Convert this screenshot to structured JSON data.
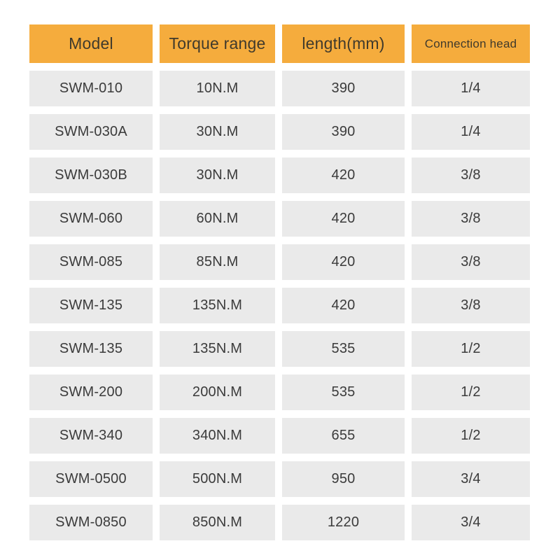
{
  "colors": {
    "header_bg": "#f5ac3d",
    "header_text": "#403a2c",
    "cell_bg": "#eaeaea",
    "cell_text": "#3b3b3b",
    "page_bg": "#ffffff"
  },
  "table": {
    "headers": [
      "Model",
      "Torque range",
      "length(mm)",
      "Connection head"
    ],
    "rows": [
      {
        "model": "SWM-010",
        "torque": "10N.M",
        "length": "390",
        "head": "1/4"
      },
      {
        "model": "SWM-030A",
        "torque": "30N.M",
        "length": "390",
        "head": "1/4"
      },
      {
        "model": "SWM-030B",
        "torque": "30N.M",
        "length": "420",
        "head": "3/8"
      },
      {
        "model": "SWM-060",
        "torque": "60N.M",
        "length": "420",
        "head": "3/8"
      },
      {
        "model": "SWM-085",
        "torque": "85N.M",
        "length": "420",
        "head": "3/8"
      },
      {
        "model": "SWM-135",
        "torque": "135N.M",
        "length": "420",
        "head": "3/8"
      },
      {
        "model": "SWM-135",
        "torque": "135N.M",
        "length": "535",
        "head": "1/2"
      },
      {
        "model": "SWM-200",
        "torque": "200N.M",
        "length": "535",
        "head": "1/2"
      },
      {
        "model": "SWM-340",
        "torque": "340N.M",
        "length": "655",
        "head": "1/2"
      },
      {
        "model": "SWM-0500",
        "torque": "500N.M",
        "length": "950",
        "head": "3/4"
      },
      {
        "model": "SWM-0850",
        "torque": "850N.M",
        "length": "1220",
        "head": "3/4"
      }
    ]
  },
  "chart_data": {
    "type": "table",
    "title": "",
    "columns": [
      "Model",
      "Torque range",
      "length(mm)",
      "Connection head"
    ],
    "rows": [
      [
        "SWM-010",
        "10N.M",
        390,
        "1/4"
      ],
      [
        "SWM-030A",
        "30N.M",
        390,
        "1/4"
      ],
      [
        "SWM-030B",
        "30N.M",
        420,
        "3/8"
      ],
      [
        "SWM-060",
        "60N.M",
        420,
        "3/8"
      ],
      [
        "SWM-085",
        "85N.M",
        420,
        "3/8"
      ],
      [
        "SWM-135",
        "135N.M",
        420,
        "3/8"
      ],
      [
        "SWM-135",
        "135N.M",
        535,
        "1/2"
      ],
      [
        "SWM-200",
        "200N.M",
        535,
        "1/2"
      ],
      [
        "SWM-340",
        "340N.M",
        655,
        "1/2"
      ],
      [
        "SWM-0500",
        "500N.M",
        950,
        "3/4"
      ],
      [
        "SWM-0850",
        "850N.M",
        1220,
        "3/4"
      ]
    ]
  }
}
